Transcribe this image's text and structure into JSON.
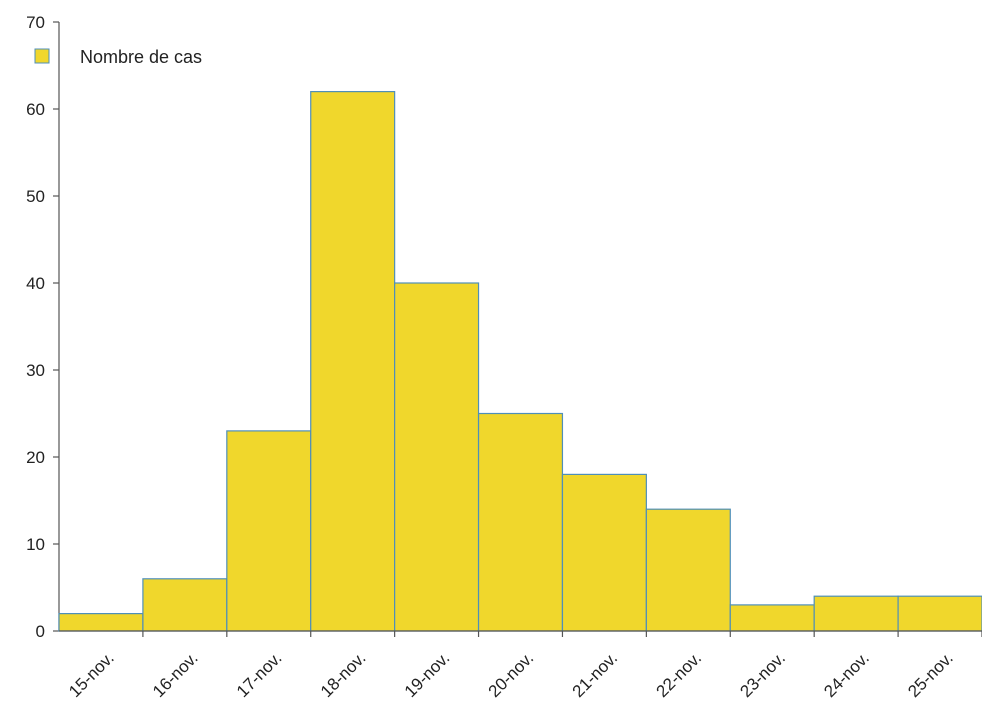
{
  "chart_data": {
    "type": "bar",
    "categories": [
      "15-nov.",
      "16-nov.",
      "17-nov.",
      "18-nov.",
      "19-nov.",
      "20-nov.",
      "21-nov.",
      "22-nov.",
      "23-nov.",
      "24-nov.",
      "25-nov."
    ],
    "series": [
      {
        "name": "Nombre de cas",
        "values": [
          2,
          6,
          23,
          62,
          40,
          25,
          18,
          14,
          3,
          4,
          4
        ],
        "color": "#f0d72c"
      }
    ],
    "yticks": [
      0,
      10,
      20,
      30,
      40,
      50,
      60,
      70
    ],
    "ylim": [
      0,
      70
    ],
    "grid": false,
    "legend": "top-left",
    "colors": {
      "bar_fill": "#f0d72c",
      "bar_edge": "#4f8fb8",
      "axis": "#555555",
      "text": "#222222"
    }
  }
}
